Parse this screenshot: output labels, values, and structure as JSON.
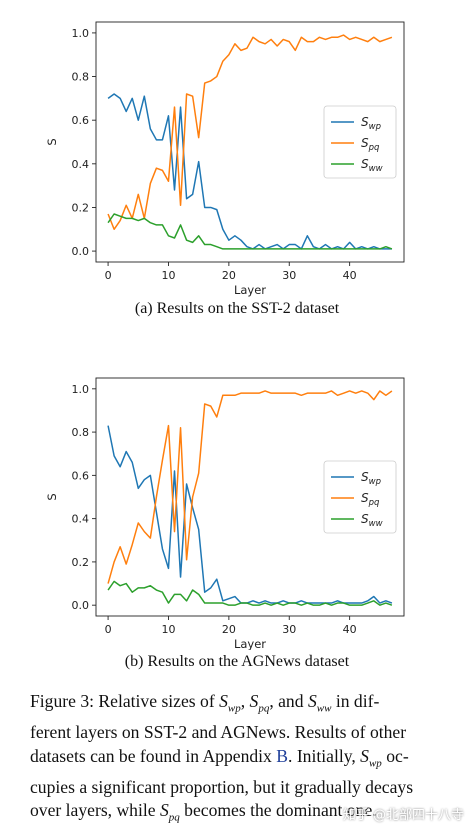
{
  "chart_data": [
    {
      "type": "line",
      "xlabel": "Layer",
      "ylabel": "S",
      "xlim": [
        -2,
        49
      ],
      "ylim": [
        -0.05,
        1.05
      ],
      "xticks": [
        0,
        10,
        20,
        30,
        40
      ],
      "yticks": [
        0.0,
        0.2,
        0.4,
        0.6,
        0.8,
        1.0
      ],
      "legend_position": "center-right",
      "grid": false,
      "x": [
        0,
        1,
        2,
        3,
        4,
        5,
        6,
        7,
        8,
        9,
        10,
        11,
        12,
        13,
        14,
        15,
        16,
        17,
        18,
        19,
        20,
        21,
        22,
        23,
        24,
        25,
        26,
        27,
        28,
        29,
        30,
        31,
        32,
        33,
        34,
        35,
        36,
        37,
        38,
        39,
        40,
        41,
        42,
        43,
        44,
        45,
        46,
        47
      ],
      "series": [
        {
          "name": "S_wp",
          "label_base": "S",
          "label_sub": "wp",
          "color": "#1f77b4",
          "values": [
            0.7,
            0.72,
            0.7,
            0.64,
            0.7,
            0.6,
            0.71,
            0.56,
            0.51,
            0.51,
            0.62,
            0.28,
            0.66,
            0.24,
            0.26,
            0.41,
            0.2,
            0.2,
            0.19,
            0.1,
            0.05,
            0.07,
            0.05,
            0.02,
            0.01,
            0.03,
            0.01,
            0.02,
            0.03,
            0.01,
            0.03,
            0.03,
            0.01,
            0.07,
            0.02,
            0.01,
            0.03,
            0.01,
            0.02,
            0.01,
            0.04,
            0.01,
            0.02,
            0.01,
            0.02,
            0.01,
            0.01,
            0.01
          ]
        },
        {
          "name": "S_pq",
          "label_base": "S",
          "label_sub": "pq",
          "color": "#ff7f0e",
          "values": [
            0.17,
            0.1,
            0.14,
            0.21,
            0.15,
            0.26,
            0.15,
            0.31,
            0.38,
            0.37,
            0.32,
            0.66,
            0.21,
            0.72,
            0.71,
            0.52,
            0.77,
            0.78,
            0.8,
            0.87,
            0.9,
            0.95,
            0.92,
            0.93,
            0.98,
            0.96,
            0.95,
            0.97,
            0.94,
            0.97,
            0.96,
            0.92,
            0.98,
            0.96,
            0.96,
            0.98,
            0.97,
            0.98,
            0.98,
            0.99,
            0.97,
            0.98,
            0.97,
            0.96,
            0.98,
            0.96,
            0.97,
            0.98
          ]
        },
        {
          "name": "S_ww",
          "label_base": "S",
          "label_sub": "ww",
          "color": "#2ca02c",
          "values": [
            0.13,
            0.17,
            0.16,
            0.15,
            0.15,
            0.14,
            0.15,
            0.13,
            0.12,
            0.12,
            0.07,
            0.06,
            0.12,
            0.05,
            0.04,
            0.07,
            0.03,
            0.03,
            0.02,
            0.01,
            0.01,
            0.01,
            0.01,
            0.01,
            0.01,
            0.01,
            0.01,
            0.01,
            0.01,
            0.01,
            0.01,
            0.01,
            0.01,
            0.01,
            0.01,
            0.01,
            0.01,
            0.01,
            0.01,
            0.01,
            0.01,
            0.01,
            0.01,
            0.01,
            0.01,
            0.01,
            0.02,
            0.01
          ]
        }
      ]
    },
    {
      "type": "line",
      "xlabel": "Layer",
      "ylabel": "S",
      "xlim": [
        -2,
        49
      ],
      "ylim": [
        -0.05,
        1.05
      ],
      "xticks": [
        0,
        10,
        20,
        30,
        40
      ],
      "yticks": [
        0.0,
        0.2,
        0.4,
        0.6,
        0.8,
        1.0
      ],
      "legend_position": "center-right",
      "grid": false,
      "x": [
        0,
        1,
        2,
        3,
        4,
        5,
        6,
        7,
        8,
        9,
        10,
        11,
        12,
        13,
        14,
        15,
        16,
        17,
        18,
        19,
        20,
        21,
        22,
        23,
        24,
        25,
        26,
        27,
        28,
        29,
        30,
        31,
        32,
        33,
        34,
        35,
        36,
        37,
        38,
        39,
        40,
        41,
        42,
        43,
        44,
        45,
        46,
        47
      ],
      "series": [
        {
          "name": "S_wp",
          "label_base": "S",
          "label_sub": "wp",
          "color": "#1f77b4",
          "values": [
            0.83,
            0.69,
            0.64,
            0.71,
            0.66,
            0.54,
            0.58,
            0.6,
            0.43,
            0.26,
            0.17,
            0.62,
            0.13,
            0.56,
            0.45,
            0.35,
            0.06,
            0.08,
            0.12,
            0.02,
            0.03,
            0.04,
            0.01,
            0.01,
            0.02,
            0.01,
            0.02,
            0.01,
            0.01,
            0.02,
            0.01,
            0.01,
            0.02,
            0.01,
            0.01,
            0.01,
            0.01,
            0.01,
            0.02,
            0.01,
            0.01,
            0.01,
            0.01,
            0.02,
            0.04,
            0.01,
            0.02,
            0.01
          ]
        },
        {
          "name": "S_pq",
          "label_base": "S",
          "label_sub": "pq",
          "color": "#ff7f0e",
          "values": [
            0.1,
            0.2,
            0.27,
            0.19,
            0.28,
            0.38,
            0.34,
            0.31,
            0.5,
            0.67,
            0.83,
            0.34,
            0.82,
            0.21,
            0.5,
            0.61,
            0.93,
            0.92,
            0.87,
            0.97,
            0.97,
            0.97,
            0.98,
            0.98,
            0.98,
            0.98,
            0.99,
            0.98,
            0.98,
            0.98,
            0.98,
            0.98,
            0.97,
            0.98,
            0.98,
            0.98,
            0.98,
            0.99,
            0.97,
            0.98,
            0.99,
            0.98,
            0.99,
            0.98,
            0.95,
            0.99,
            0.97,
            0.99
          ]
        },
        {
          "name": "S_ww",
          "label_base": "S",
          "label_sub": "ww",
          "color": "#2ca02c",
          "values": [
            0.07,
            0.11,
            0.09,
            0.1,
            0.06,
            0.08,
            0.08,
            0.09,
            0.07,
            0.06,
            0.01,
            0.05,
            0.05,
            0.02,
            0.07,
            0.05,
            0.01,
            0.01,
            0.01,
            0.01,
            0.0,
            0.0,
            0.01,
            0.01,
            0.0,
            0.0,
            0.01,
            0.0,
            0.01,
            0.0,
            0.01,
            0.01,
            0.0,
            0.01,
            0.0,
            0.0,
            0.01,
            0.0,
            0.01,
            0.01,
            0.0,
            0.0,
            0.0,
            0.01,
            0.02,
            0.0,
            0.01,
            0.0
          ]
        }
      ]
    }
  ],
  "subcaptions": {
    "a": "(a) Results on the SST-2 dataset",
    "b": "(b) Results on the AGNews dataset"
  },
  "caption": {
    "l1_a": "Figure 3: Relative sizes of ",
    "l1_b": ", ",
    "l1_c": ", and ",
    "l1_d": " in dif-",
    "l2": "ferent layers on SST-2 and AGNews. Results of other",
    "l3_a": "datasets can be found in Appendix ",
    "l3_ref": "B",
    "l3_b": ". Initially, ",
    "l3_c": " oc-",
    "l4": "cupies a significant proportion, but it gradually decays",
    "l5_a": "over layers, while ",
    "l5_b": " becomes the dominant one.",
    "sym_base": "S",
    "sub_wp": "wp",
    "sub_pq": "pq",
    "sub_ww": "ww"
  },
  "watermark": "知乎 @北部四十八寺"
}
